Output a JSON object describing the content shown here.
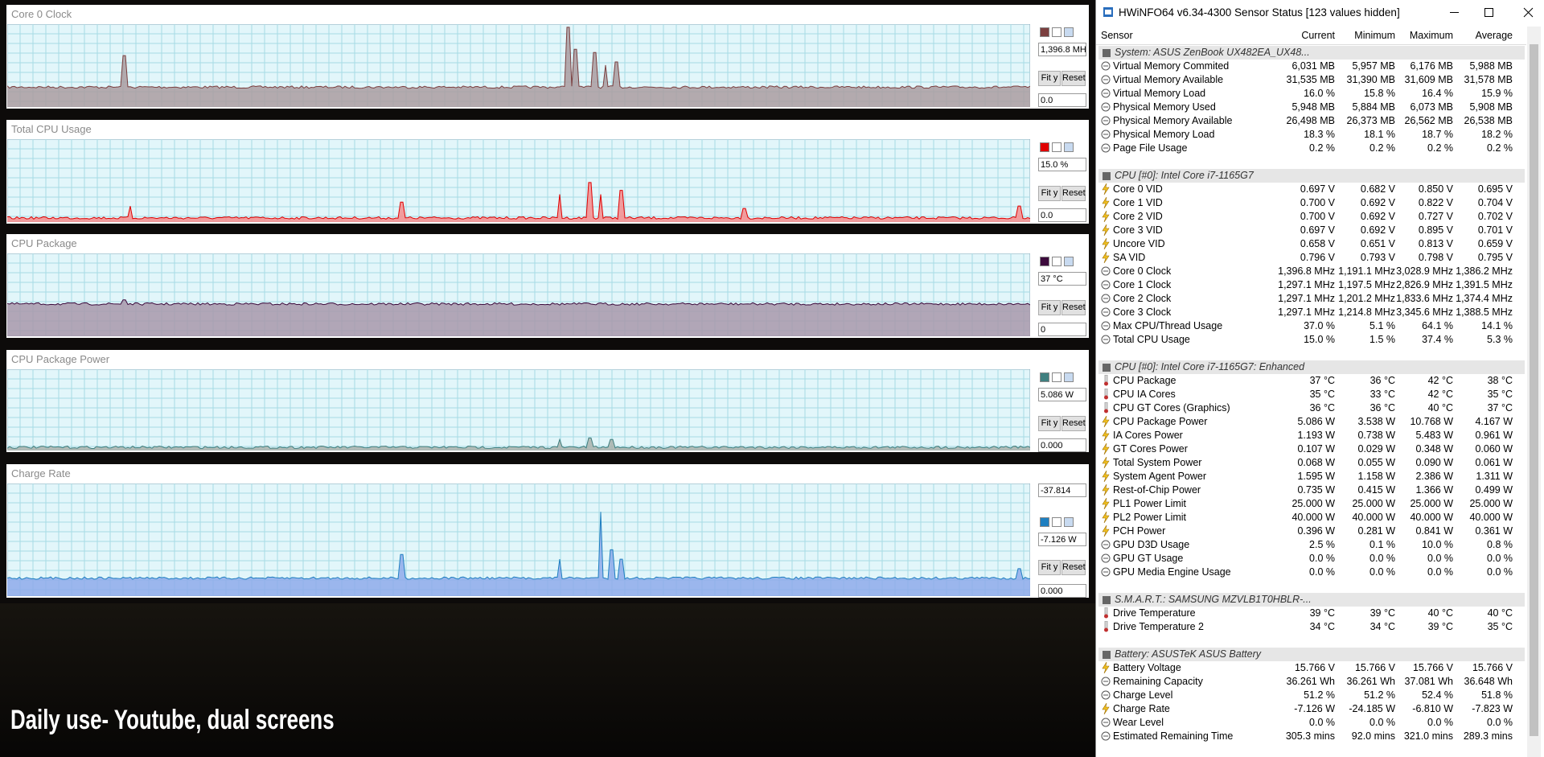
{
  "caption": "Daily use- Youtube, dual screens",
  "buttons": [
    "Fit y",
    "Reset"
  ],
  "graphs": [
    {
      "title": "Core 0 Clock",
      "current": "1,396.8 MH",
      "bottom": "0.0",
      "color": "#7b3f3f",
      "fill": "#aa9ca0"
    },
    {
      "title": "Total CPU Usage",
      "current": "15.0 %",
      "bottom": "0.0",
      "color": "#e00000",
      "fill": "#f48c8c"
    },
    {
      "title": "CPU Package",
      "current": "37 °C",
      "bottom": "0",
      "color": "#3c0a3c",
      "fill": "#a898aa"
    },
    {
      "title": "CPU Package Power",
      "current": "5.086 W",
      "bottom": "0.000",
      "color": "#3f7f7f",
      "fill": "#a9b1ab"
    },
    {
      "title": "Charge Rate",
      "top": "-37.814",
      "current": "-7.126 W",
      "bottom": "0.000",
      "color": "#1e7fc0",
      "fill": "#8eaaea"
    }
  ],
  "window": {
    "title": "HWiNFO64 v6.34-4300 Sensor Status [123 values hidden]",
    "columns": [
      "Sensor",
      "Current",
      "Minimum",
      "Maximum",
      "Average"
    ],
    "sections": [
      {
        "name": "System: ASUS ZenBook UX482EA_UX48...",
        "rows": [
          [
            "Virtual Memory Commited",
            "6,031 MB",
            "5,957 MB",
            "6,176 MB",
            "5,988 MB"
          ],
          [
            "Virtual Memory Available",
            "31,535 MB",
            "31,390 MB",
            "31,609 MB",
            "31,578 MB"
          ],
          [
            "Virtual Memory Load",
            "16.0 %",
            "15.8 %",
            "16.4 %",
            "15.9 %"
          ],
          [
            "Physical Memory Used",
            "5,948 MB",
            "5,884 MB",
            "6,073 MB",
            "5,908 MB"
          ],
          [
            "Physical Memory Available",
            "26,498 MB",
            "26,373 MB",
            "26,562 MB",
            "26,538 MB"
          ],
          [
            "Physical Memory Load",
            "18.3 %",
            "18.1 %",
            "18.7 %",
            "18.2 %"
          ],
          [
            "Page File Usage",
            "0.2 %",
            "0.2 %",
            "0.2 %",
            "0.2 %"
          ]
        ]
      },
      {
        "name": "CPU [#0]: Intel Core i7-1165G7",
        "rows": [
          [
            "Core 0 VID",
            "0.697 V",
            "0.682 V",
            "0.850 V",
            "0.695 V"
          ],
          [
            "Core 1 VID",
            "0.700 V",
            "0.692 V",
            "0.822 V",
            "0.704 V"
          ],
          [
            "Core 2 VID",
            "0.700 V",
            "0.692 V",
            "0.727 V",
            "0.702 V"
          ],
          [
            "Core 3 VID",
            "0.697 V",
            "0.692 V",
            "0.895 V",
            "0.701 V"
          ],
          [
            "Uncore VID",
            "0.658 V",
            "0.651 V",
            "0.813 V",
            "0.659 V"
          ],
          [
            "SA VID",
            "0.796 V",
            "0.793 V",
            "0.798 V",
            "0.795 V"
          ],
          [
            "Core 0 Clock",
            "1,396.8 MHz",
            "1,191.1 MHz",
            "3,028.9 MHz",
            "1,386.2 MHz"
          ],
          [
            "Core 1 Clock",
            "1,297.1 MHz",
            "1,197.5 MHz",
            "2,826.9 MHz",
            "1,391.5 MHz"
          ],
          [
            "Core 2 Clock",
            "1,297.1 MHz",
            "1,201.2 MHz",
            "1,833.6 MHz",
            "1,374.4 MHz"
          ],
          [
            "Core 3 Clock",
            "1,297.1 MHz",
            "1,214.8 MHz",
            "3,345.6 MHz",
            "1,388.5 MHz"
          ],
          [
            "Max CPU/Thread Usage",
            "37.0 %",
            "5.1 %",
            "64.1 %",
            "14.1 %"
          ],
          [
            "Total CPU Usage",
            "15.0 %",
            "1.5 %",
            "37.4 %",
            "5.3 %"
          ]
        ]
      },
      {
        "name": "CPU [#0]: Intel Core i7-1165G7: Enhanced",
        "rows": [
          [
            "CPU Package",
            "37 °C",
            "36 °C",
            "42 °C",
            "38 °C"
          ],
          [
            "CPU IA Cores",
            "35 °C",
            "33 °C",
            "42 °C",
            "35 °C"
          ],
          [
            "CPU GT Cores (Graphics)",
            "36 °C",
            "36 °C",
            "40 °C",
            "37 °C"
          ],
          [
            "CPU Package Power",
            "5.086 W",
            "3.538 W",
            "10.768 W",
            "4.167 W"
          ],
          [
            "IA Cores Power",
            "1.193 W",
            "0.738 W",
            "5.483 W",
            "0.961 W"
          ],
          [
            "GT Cores Power",
            "0.107 W",
            "0.029 W",
            "0.348 W",
            "0.060 W"
          ],
          [
            "Total System Power",
            "0.068 W",
            "0.055 W",
            "0.090 W",
            "0.061 W"
          ],
          [
            "System Agent Power",
            "1.595 W",
            "1.158 W",
            "2.386 W",
            "1.311 W"
          ],
          [
            "Rest-of-Chip Power",
            "0.735 W",
            "0.415 W",
            "1.366 W",
            "0.499 W"
          ],
          [
            "PL1 Power Limit",
            "25.000 W",
            "25.000 W",
            "25.000 W",
            "25.000 W"
          ],
          [
            "PL2 Power Limit",
            "40.000 W",
            "40.000 W",
            "40.000 W",
            "40.000 W"
          ],
          [
            "PCH Power",
            "0.396 W",
            "0.281 W",
            "0.841 W",
            "0.361 W"
          ],
          [
            "GPU D3D Usage",
            "2.5 %",
            "0.1 %",
            "10.0 %",
            "0.8 %"
          ],
          [
            "GPU GT Usage",
            "0.0 %",
            "0.0 %",
            "0.0 %",
            "0.0 %"
          ],
          [
            "GPU Media Engine Usage",
            "0.0 %",
            "0.0 %",
            "0.0 %",
            "0.0 %"
          ]
        ]
      },
      {
        "name": "S.M.A.R.T.: SAMSUNG MZVLB1T0HBLR-...",
        "rows": [
          [
            "Drive Temperature",
            "39 °C",
            "39 °C",
            "40 °C",
            "40 °C"
          ],
          [
            "Drive Temperature 2",
            "34 °C",
            "34 °C",
            "39 °C",
            "35 °C"
          ]
        ]
      },
      {
        "name": "Battery: ASUSTeK ASUS Battery",
        "rows": [
          [
            "Battery Voltage",
            "15.766 V",
            "15.766 V",
            "15.766 V",
            "15.766 V"
          ],
          [
            "Remaining Capacity",
            "36.261 Wh",
            "36.261 Wh",
            "37.081 Wh",
            "36.648 Wh"
          ],
          [
            "Charge Level",
            "51.2 %",
            "51.2 %",
            "52.4 %",
            "51.8 %"
          ],
          [
            "Charge Rate",
            "-7.126 W",
            "-24.185 W",
            "-6.810 W",
            "-7.823 W"
          ],
          [
            "Wear Level",
            "0.0 %",
            "0.0 %",
            "0.0 %",
            "0.0 %"
          ],
          [
            "Estimated Remaining Time",
            "305.3 mins",
            "92.0 mins",
            "321.0 mins",
            "289.3 mins"
          ]
        ]
      }
    ]
  }
}
